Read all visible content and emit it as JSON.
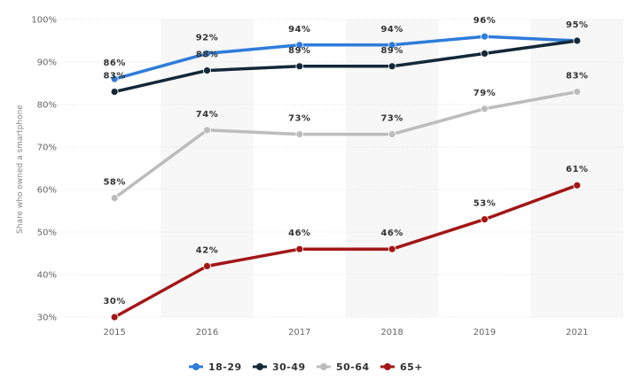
{
  "chart_data": {
    "type": "line",
    "title": "",
    "xlabel": "",
    "ylabel": "Share who owned a smartphone",
    "categories": [
      "2015",
      "2016",
      "2017",
      "2018",
      "2019",
      "2021"
    ],
    "ylim": [
      30,
      100
    ],
    "yticks": [
      30,
      40,
      50,
      60,
      70,
      80,
      90,
      100
    ],
    "ytick_labels": [
      "30%",
      "40%",
      "50%",
      "60%",
      "70%",
      "80%",
      "90%",
      "100%"
    ],
    "grid": true,
    "alternating_bands": true,
    "legend_position": "bottom-center",
    "series": [
      {
        "name": "18-29",
        "color": "#2e7cdb",
        "values": [
          86,
          92,
          94,
          94,
          96,
          95
        ],
        "labels": [
          "86%",
          "92%",
          "94%",
          "94%",
          "96%",
          "95%"
        ]
      },
      {
        "name": "30-49",
        "color": "#132838",
        "values": [
          83,
          88,
          89,
          89,
          92,
          95
        ],
        "labels": [
          "83%",
          "88%",
          "89%",
          "89%",
          "",
          ""
        ]
      },
      {
        "name": "50-64",
        "color": "#bcbcbc",
        "values": [
          58,
          74,
          73,
          73,
          79,
          83
        ],
        "labels": [
          "58%",
          "74%",
          "73%",
          "73%",
          "79%",
          "83%"
        ]
      },
      {
        "name": "65+",
        "color": "#a31616",
        "values": [
          30,
          42,
          46,
          46,
          53,
          61
        ],
        "labels": [
          "30%",
          "42%",
          "46%",
          "46%",
          "53%",
          "61%"
        ]
      }
    ]
  }
}
